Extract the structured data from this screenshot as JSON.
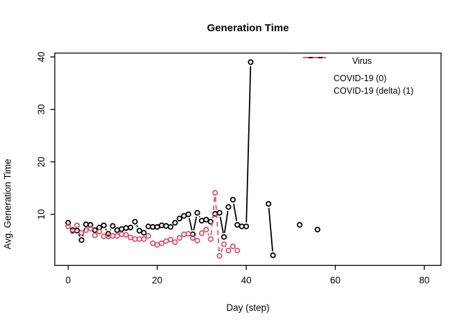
{
  "page": {
    "background": "#ffffff"
  },
  "chart_data": {
    "type": "line",
    "title": "Generation Time",
    "xlabel": "Day (step)",
    "ylabel": "Avg. Generation Time",
    "x_ticks": [
      0,
      20,
      40,
      60,
      80
    ],
    "y_ticks": [
      10,
      20,
      30,
      40
    ],
    "xlim": [
      -3,
      84
    ],
    "ylim": [
      0.3,
      40.7
    ],
    "grid": false,
    "marker": "open-circle",
    "legend": {
      "title": "Virus",
      "position": "top-right",
      "entries": [
        {
          "label": "COVID-19 (0)",
          "color": "#000000",
          "line": "solid"
        },
        {
          "label": "COVID-19 (delta) (1)",
          "color": "#DF536B",
          "line": "dashed"
        }
      ]
    },
    "series": [
      {
        "name": "COVID-19 (0)",
        "color": "#000000",
        "line": "solid",
        "points": [
          [
            0,
            8.4
          ],
          [
            1,
            7.0
          ],
          [
            2,
            6.9
          ],
          [
            3,
            5.1
          ],
          [
            4,
            8.1
          ],
          [
            5,
            8.0
          ],
          [
            6,
            7.0
          ],
          [
            7,
            7.5
          ],
          [
            8,
            7.9
          ],
          [
            9,
            6.3
          ],
          [
            10,
            7.8
          ],
          [
            11,
            7.0
          ],
          [
            12,
            7.2
          ],
          [
            13,
            7.4
          ],
          [
            14,
            7.5
          ],
          [
            15,
            8.6
          ],
          [
            16,
            6.9
          ],
          [
            17,
            6.5
          ],
          [
            18,
            7.7
          ],
          [
            19,
            7.6
          ],
          [
            20,
            7.6
          ],
          [
            21,
            7.9
          ],
          [
            22,
            7.8
          ],
          [
            23,
            7.6
          ],
          [
            24,
            8.4
          ],
          [
            25,
            9.2
          ],
          [
            26,
            9.7
          ],
          [
            27,
            10.0
          ],
          [
            28,
            6.2
          ],
          [
            29,
            10.3
          ],
          [
            30,
            8.8
          ],
          [
            31,
            9.0
          ],
          [
            32,
            8.6
          ],
          [
            33,
            10.1
          ],
          [
            34,
            10.3
          ],
          [
            35,
            5.7
          ],
          [
            36,
            11.4
          ],
          [
            37,
            12.8
          ],
          [
            38,
            8.0
          ],
          [
            39,
            7.7
          ],
          [
            40,
            7.7
          ],
          [
            41,
            39.0
          ],
          [
            45,
            12.0
          ],
          [
            46,
            2.2
          ],
          [
            52,
            8.0
          ],
          [
            56,
            7.1
          ]
        ]
      },
      {
        "name": "COVID-19 (delta) (1)",
        "color": "#DF536B",
        "line": "dashed",
        "points": [
          [
            0,
            7.7
          ],
          [
            1,
            6.8
          ],
          [
            2,
            7.9
          ],
          [
            3,
            6.5
          ],
          [
            4,
            7.0
          ],
          [
            5,
            7.3
          ],
          [
            6,
            6.0
          ],
          [
            7,
            6.7
          ],
          [
            8,
            5.8
          ],
          [
            9,
            5.8
          ],
          [
            10,
            5.9
          ],
          [
            11,
            5.9
          ],
          [
            12,
            6.2
          ],
          [
            13,
            6.1
          ],
          [
            14,
            5.6
          ],
          [
            15,
            5.3
          ],
          [
            16,
            5.3
          ],
          [
            17,
            5.3
          ],
          [
            18,
            5.9
          ],
          [
            19,
            4.5
          ],
          [
            20,
            4.2
          ],
          [
            21,
            4.5
          ],
          [
            22,
            4.9
          ],
          [
            23,
            5.2
          ],
          [
            24,
            4.7
          ],
          [
            25,
            5.5
          ],
          [
            26,
            6.2
          ],
          [
            27,
            6.3
          ],
          [
            28,
            5.5
          ],
          [
            29,
            5.0
          ],
          [
            30,
            6.4
          ],
          [
            31,
            7.1
          ],
          [
            32,
            5.3
          ],
          [
            33,
            14.1
          ],
          [
            34,
            2.1
          ],
          [
            35,
            4.3
          ],
          [
            36,
            3.1
          ],
          [
            37,
            3.9
          ],
          [
            38,
            3.1
          ]
        ]
      }
    ]
  }
}
